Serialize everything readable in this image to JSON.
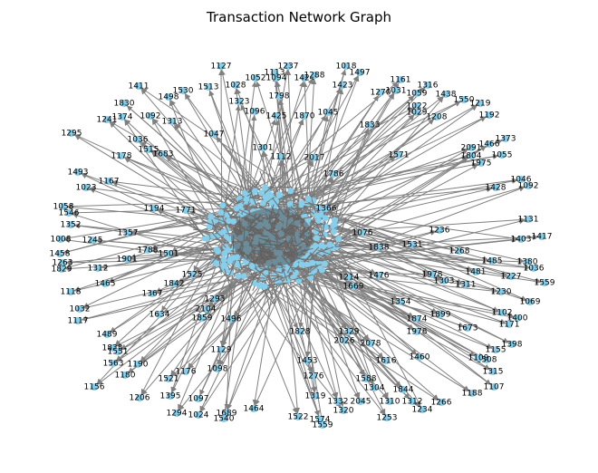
{
  "title": "Transaction Network Graph",
  "nodes": [
    "1127",
    "1237",
    "1018",
    "1497",
    "1113",
    "1052",
    "1094",
    "1424",
    "1288",
    "1423",
    "1161",
    "1316",
    "1411",
    "1530",
    "1513",
    "1028",
    "1798",
    "1270",
    "1031",
    "1059",
    "1438",
    "1550",
    "1219",
    "1498",
    "1830",
    "1323",
    "1022",
    "1029",
    "1208",
    "1192",
    "1374",
    "1092",
    "1096",
    "1425",
    "1870",
    "1045",
    "1833",
    "1241",
    "1313",
    "1295",
    "1047",
    "1036",
    "1515",
    "1683",
    "1178",
    "1301",
    "1112",
    "2017",
    "1571",
    "1373",
    "1466",
    "2091",
    "1804",
    "1055",
    "1975",
    "1493",
    "1786",
    "1046",
    "1092",
    "1428",
    "1023",
    "1167",
    "1058",
    "1546",
    "1194",
    "1771",
    "1366",
    "1352",
    "1236",
    "1131",
    "1008",
    "1245",
    "1357",
    "1076",
    "1838",
    "1531",
    "1268",
    "1417",
    "1403",
    "1458",
    "1788",
    "1501",
    "1485",
    "1380",
    "1263",
    "1829",
    "1312",
    "1901",
    "1481",
    "1036",
    "1227",
    "1476",
    "1214",
    "1978",
    "1303",
    "1311",
    "1559",
    "1465",
    "1525",
    "1842",
    "1367",
    "1230",
    "1118",
    "1669",
    "1354",
    "1874",
    "1899",
    "1069",
    "1032",
    "1293",
    "1634",
    "1102",
    "1400",
    "1171",
    "1117",
    "1859",
    "2104",
    "1496",
    "1978",
    "1673",
    "1828",
    "1329",
    "1489",
    "1838",
    "1551",
    "1190",
    "1129",
    "2078",
    "2026",
    "1398",
    "1155",
    "1616",
    "1460",
    "1508",
    "1563",
    "1180",
    "1453",
    "1109",
    "1315",
    "1176",
    "1098",
    "1588",
    "1521",
    "1107",
    "1156",
    "1304",
    "1844",
    "1276",
    "1188",
    "1206",
    "1395",
    "1097",
    "2045",
    "1310",
    "1312",
    "1266",
    "1332",
    "1319",
    "1320",
    "1234",
    "1294",
    "1024",
    "1689",
    "1540",
    "1464",
    "1522",
    "1253",
    "1574",
    "1559"
  ]
}
